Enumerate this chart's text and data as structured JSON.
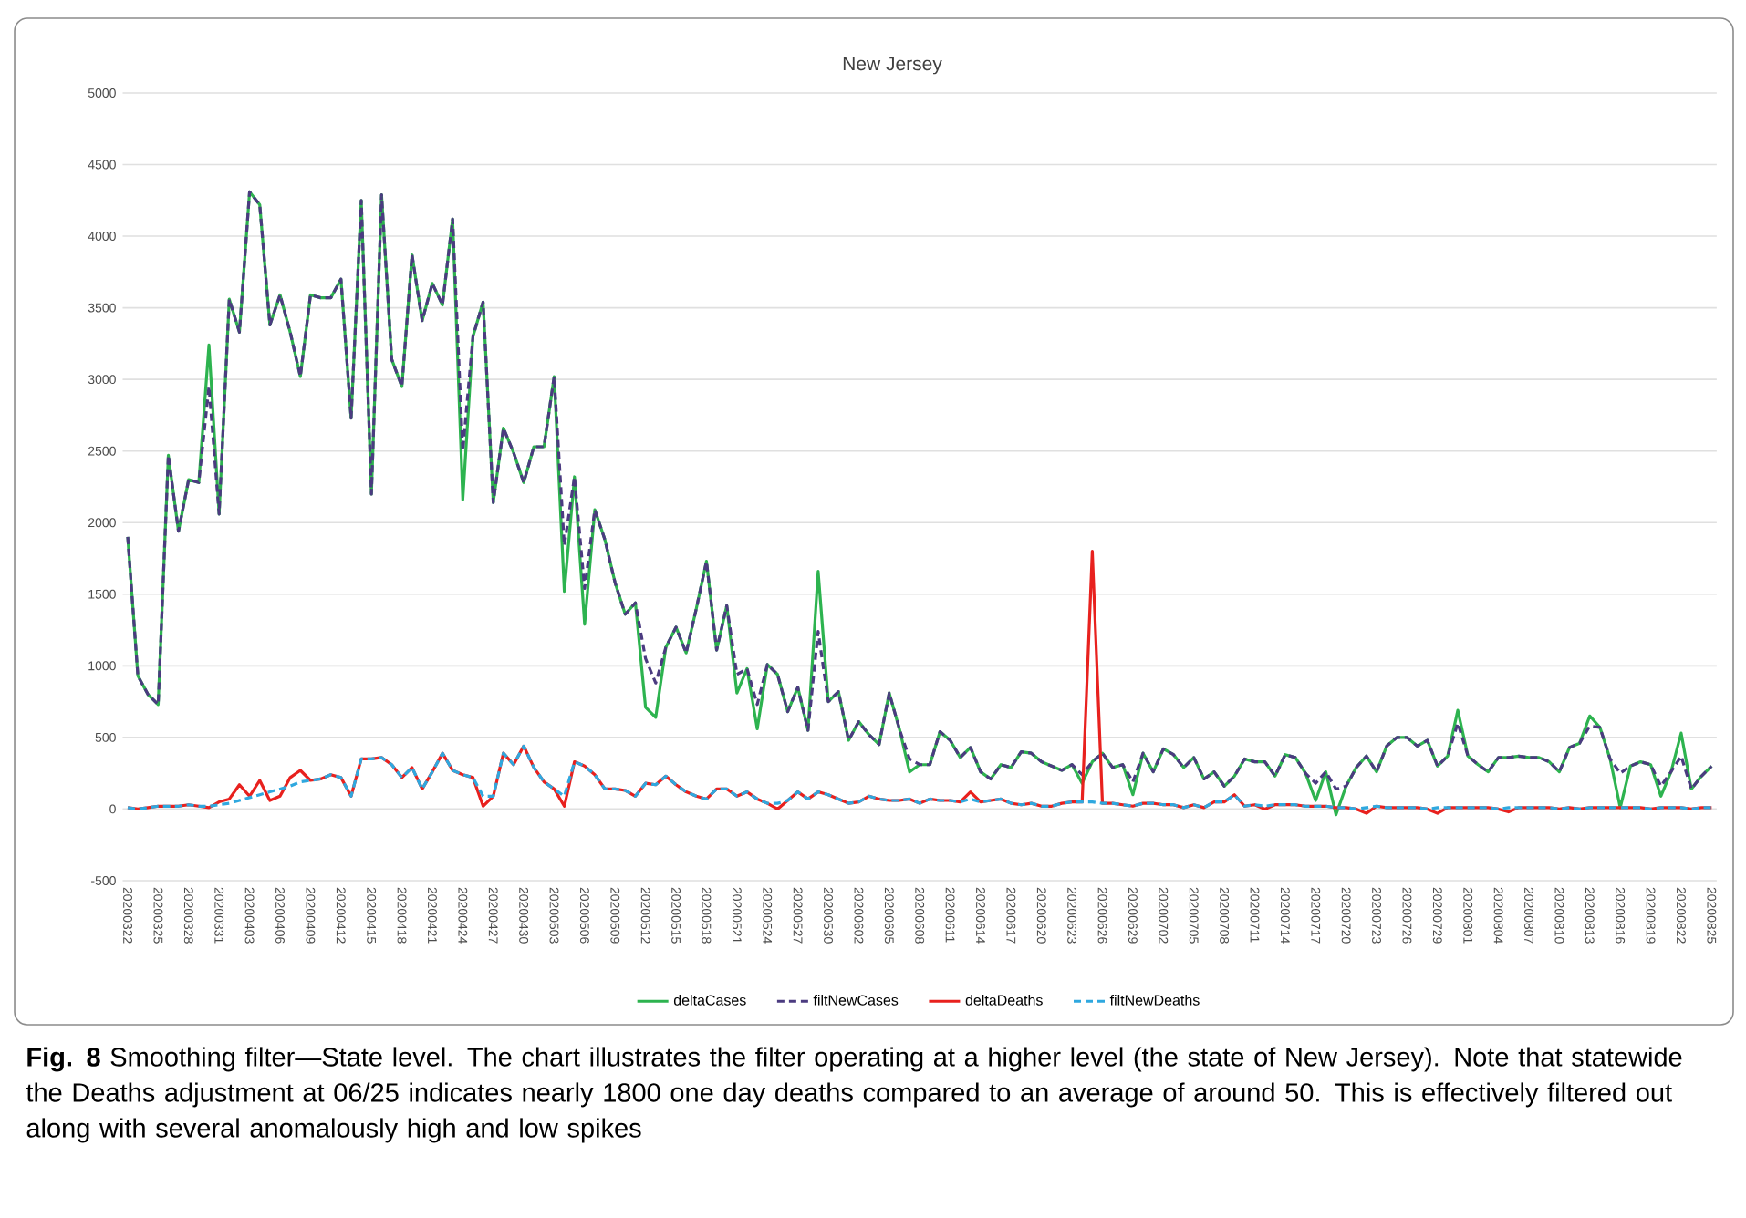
{
  "chart_data": {
    "type": "line",
    "title": "New Jersey",
    "categories": [
      "20200322",
      null,
      null,
      "20200325",
      null,
      null,
      "20200328",
      null,
      null,
      "20200331",
      null,
      null,
      "20200403",
      null,
      null,
      "20200406",
      null,
      null,
      "20200409",
      null,
      null,
      "20200412",
      null,
      null,
      "20200415",
      null,
      null,
      "20200418",
      null,
      null,
      "20200421",
      null,
      null,
      "20200424",
      null,
      null,
      "20200427",
      null,
      null,
      "20200430",
      null,
      null,
      "20200503",
      null,
      null,
      "20200506",
      null,
      null,
      "20200509",
      null,
      null,
      "20200512",
      null,
      null,
      "20200515",
      null,
      null,
      "20200518",
      null,
      null,
      "20200521",
      null,
      null,
      "20200524",
      null,
      null,
      "20200527",
      null,
      null,
      "20200530",
      null,
      null,
      "20200602",
      null,
      null,
      "20200605",
      null,
      null,
      "20200608",
      null,
      null,
      "20200611",
      null,
      null,
      "20200614",
      null,
      null,
      "20200617",
      null,
      null,
      "20200620",
      null,
      null,
      "20200623",
      null,
      null,
      "20200626",
      null,
      null,
      "20200629",
      null,
      null,
      "20200702",
      null,
      null,
      "20200705",
      null,
      null,
      "20200708",
      null,
      null,
      "20200711",
      null,
      null,
      "20200714",
      null,
      null,
      "20200717",
      null,
      null,
      "20200720",
      null,
      null,
      "20200723",
      null,
      null,
      "20200726",
      null,
      null,
      "20200729",
      null,
      null,
      "20200801",
      null,
      null,
      "20200804",
      null,
      null,
      "20200807",
      null,
      null,
      "20200810",
      null,
      null,
      "20200813",
      null,
      null,
      "20200816",
      null,
      null,
      "20200819",
      null,
      null,
      "20200822",
      null,
      null,
      "20200825"
    ],
    "series": [
      {
        "name": "deltaCases",
        "color": "#2db34f",
        "line_style": "solid",
        "values": [
          1900,
          930,
          800,
          730,
          2470,
          1940,
          2300,
          2280,
          3240,
          2060,
          3560,
          3330,
          4310,
          4220,
          3380,
          3590,
          3330,
          3020,
          3590,
          3570,
          3570,
          3700,
          2730,
          4250,
          2200,
          4290,
          3140,
          2950,
          3870,
          3410,
          3670,
          3520,
          4120,
          2160,
          3300,
          3540,
          2140,
          2660,
          2490,
          2280,
          2530,
          2530,
          3020,
          1520,
          2320,
          1290,
          2090,
          1880,
          1580,
          1360,
          1440,
          710,
          640,
          1130,
          1270,
          1090,
          1400,
          1730,
          1110,
          1420,
          810,
          980,
          560,
          1010,
          940,
          680,
          850,
          550,
          1660,
          750,
          820,
          480,
          610,
          520,
          450,
          810,
          560,
          260,
          310,
          310,
          540,
          480,
          360,
          430,
          260,
          210,
          310,
          290,
          400,
          390,
          330,
          300,
          270,
          310,
          180,
          330,
          390,
          290,
          310,
          100,
          390,
          260,
          420,
          380,
          290,
          360,
          210,
          260,
          160,
          230,
          350,
          330,
          330,
          230,
          380,
          360,
          250,
          60,
          260,
          -40,
          160,
          290,
          370,
          260,
          440,
          500,
          500,
          440,
          480,
          300,
          370,
          690,
          370,
          310,
          260,
          360,
          360,
          370,
          360,
          360,
          330,
          260,
          430,
          460,
          650,
          570,
          350,
          10,
          300,
          330,
          310,
          90,
          260,
          530,
          140,
          230,
          300
        ]
      },
      {
        "name": "filtNewCases",
        "color": "#4b3b80",
        "line_style": "dashed",
        "values": [
          1900,
          930,
          800,
          730,
          2470,
          1940,
          2300,
          2280,
          2950,
          2060,
          3560,
          3330,
          4310,
          4220,
          3380,
          3590,
          3330,
          3020,
          3590,
          3570,
          3570,
          3700,
          2730,
          4250,
          2200,
          4290,
          3140,
          2950,
          3870,
          3410,
          3670,
          3520,
          4120,
          2500,
          3300,
          3540,
          2140,
          2660,
          2490,
          2280,
          2530,
          2530,
          3020,
          1840,
          2320,
          1540,
          2090,
          1880,
          1580,
          1360,
          1440,
          1050,
          880,
          1130,
          1270,
          1090,
          1400,
          1730,
          1110,
          1420,
          940,
          980,
          730,
          1010,
          940,
          680,
          850,
          550,
          1240,
          750,
          820,
          480,
          610,
          520,
          450,
          810,
          560,
          350,
          310,
          310,
          540,
          480,
          360,
          430,
          260,
          210,
          310,
          290,
          400,
          390,
          330,
          300,
          270,
          310,
          240,
          330,
          390,
          290,
          310,
          190,
          390,
          260,
          420,
          380,
          290,
          360,
          210,
          260,
          160,
          230,
          350,
          330,
          330,
          230,
          380,
          360,
          250,
          180,
          260,
          140,
          160,
          290,
          370,
          260,
          440,
          500,
          500,
          440,
          480,
          300,
          370,
          600,
          370,
          310,
          260,
          360,
          360,
          370,
          360,
          360,
          330,
          260,
          430,
          460,
          580,
          570,
          350,
          250,
          300,
          330,
          310,
          160,
          260,
          370,
          140,
          230,
          300
        ]
      },
      {
        "name": "deltaDeaths",
        "color": "#e8211e",
        "line_style": "solid",
        "values": [
          10,
          0,
          10,
          20,
          20,
          20,
          30,
          20,
          10,
          50,
          70,
          170,
          90,
          200,
          60,
          90,
          220,
          270,
          200,
          210,
          240,
          220,
          90,
          350,
          350,
          360,
          310,
          220,
          290,
          140,
          260,
          390,
          270,
          240,
          220,
          20,
          90,
          390,
          310,
          440,
          290,
          190,
          140,
          20,
          330,
          300,
          240,
          140,
          140,
          130,
          90,
          180,
          170,
          230,
          170,
          120,
          90,
          70,
          140,
          140,
          90,
          120,
          70,
          40,
          0,
          60,
          120,
          70,
          120,
          100,
          70,
          40,
          50,
          90,
          70,
          60,
          60,
          70,
          40,
          70,
          60,
          60,
          50,
          120,
          50,
          60,
          70,
          40,
          30,
          40,
          20,
          20,
          40,
          50,
          50,
          1800,
          40,
          40,
          30,
          20,
          40,
          40,
          30,
          30,
          10,
          30,
          10,
          50,
          50,
          100,
          20,
          30,
          0,
          30,
          30,
          30,
          20,
          20,
          20,
          10,
          10,
          0,
          -30,
          20,
          10,
          10,
          10,
          10,
          0,
          -30,
          10,
          10,
          10,
          10,
          10,
          0,
          -20,
          10,
          10,
          10,
          10,
          0,
          10,
          0,
          10,
          10,
          10,
          10,
          10,
          10,
          0,
          10,
          10,
          10,
          0,
          10,
          10
        ]
      },
      {
        "name": "filtNewDeaths",
        "color": "#2fa8df",
        "line_style": "dashed",
        "values": [
          10,
          0,
          10,
          20,
          20,
          20,
          30,
          20,
          20,
          30,
          40,
          60,
          80,
          100,
          120,
          140,
          160,
          190,
          200,
          210,
          240,
          220,
          90,
          350,
          350,
          360,
          310,
          220,
          290,
          140,
          260,
          390,
          270,
          240,
          220,
          90,
          90,
          390,
          310,
          440,
          290,
          190,
          140,
          90,
          330,
          300,
          240,
          140,
          140,
          130,
          90,
          180,
          170,
          230,
          170,
          120,
          90,
          70,
          140,
          140,
          90,
          120,
          70,
          40,
          40,
          60,
          120,
          70,
          120,
          100,
          70,
          40,
          50,
          90,
          70,
          60,
          60,
          70,
          40,
          70,
          60,
          60,
          50,
          70,
          50,
          60,
          70,
          40,
          30,
          40,
          20,
          20,
          40,
          50,
          50,
          50,
          40,
          40,
          30,
          20,
          40,
          40,
          30,
          30,
          10,
          30,
          10,
          50,
          50,
          100,
          20,
          30,
          20,
          30,
          30,
          30,
          20,
          20,
          20,
          10,
          10,
          0,
          10,
          20,
          10,
          10,
          10,
          10,
          0,
          10,
          10,
          10,
          10,
          10,
          10,
          0,
          10,
          10,
          10,
          10,
          10,
          0,
          10,
          0,
          10,
          10,
          10,
          10,
          10,
          10,
          0,
          10,
          10,
          10,
          0,
          10,
          10
        ]
      }
    ],
    "ylim": [
      -500,
      5000
    ],
    "yticks": [
      -500,
      0,
      500,
      1000,
      1500,
      2000,
      2500,
      3000,
      3500,
      4000,
      4500,
      5000
    ],
    "grid": "y",
    "legend": "bottom",
    "marker": "none",
    "annotations": [
      "**Fig. 8** Smoothing filter—State level. The chart illustrates the filter operating at a higher level (the state of New Jersey). Note that statewide the Deaths adjustment at 06/25 indicates nearly 1800 one day deaths compared to an average of around 50. This is effectively filtered out along with several anomalously high and low spikes"
    ]
  }
}
